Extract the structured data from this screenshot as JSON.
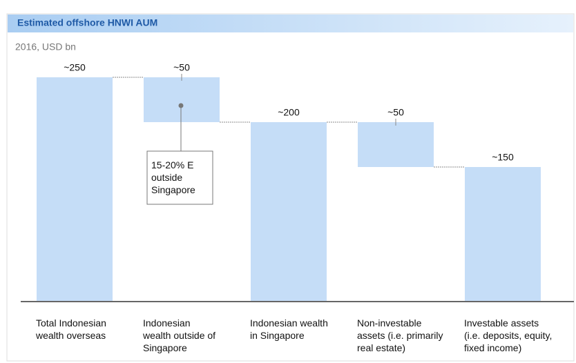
{
  "chart_data": {
    "type": "waterfall",
    "title": "Estimated offshore HNWI AUM",
    "subtitle": "2016, USD bn",
    "categories": [
      "Total Indonesian\nwealth overseas",
      "Indonesian\nwealth outside of\nSingapore",
      "Indonesian wealth\nin Singapore",
      "Non-investable\nassets (i.e. primarily\nreal estate)",
      "Investable assets\n(i.e. deposits, equity,\nfixed income)"
    ],
    "values": [
      250,
      50,
      200,
      50,
      150
    ],
    "value_labels": [
      "~250",
      "~50",
      "~200",
      "~50",
      "~150"
    ],
    "measures": [
      "total",
      "decrease",
      "total",
      "decrease",
      "total"
    ],
    "color": "#c5ddf7",
    "ylim": [
      0,
      250
    ],
    "annotation": "15-20% E\noutside\nSingapore"
  }
}
